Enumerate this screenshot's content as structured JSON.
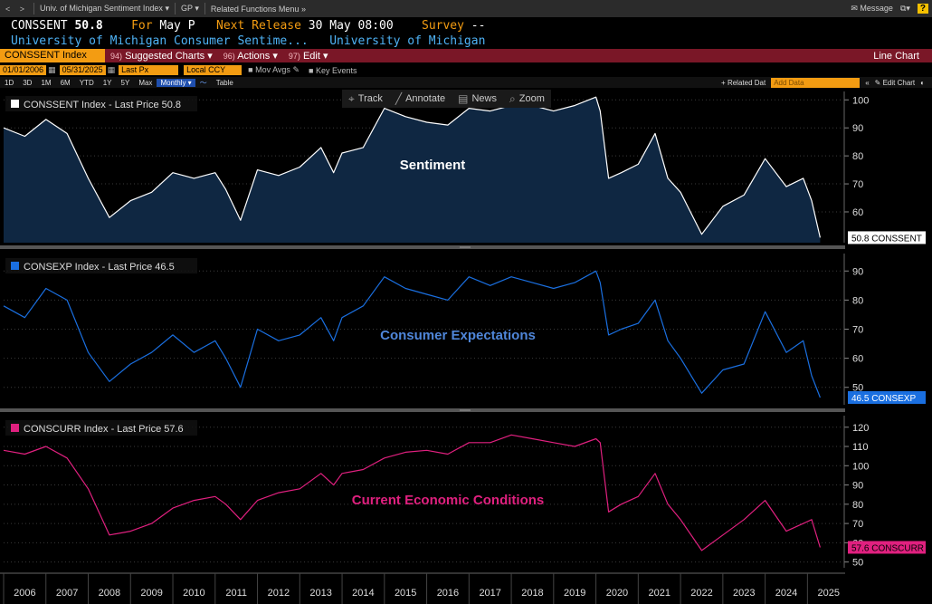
{
  "menu": {
    "nav_icons": "< >",
    "dropdown1": "Univ. of Michigan Sentiment Index",
    "dropdown2": "GP",
    "dropdown3": "Related Functions Menu",
    "message": "Message",
    "help": "?"
  },
  "header": {
    "ticker": "CONSSENT",
    "price": "50.8",
    "for_label": "For",
    "for_value": "May P",
    "next_label": "Next Release",
    "next_value": "30 May 08:00",
    "survey_label": "Survey",
    "survey_value": "--",
    "description": "University of Michigan Consumer Sentime...",
    "source": "University of Michigan"
  },
  "function_bar": {
    "security": "CONSSENT Index",
    "suggested_num": "94)",
    "suggested": "Suggested Charts",
    "actions_num": "96)",
    "actions": "Actions",
    "edit_num": "97)",
    "edit": "Edit",
    "chart_type": "Line Chart"
  },
  "date_bar": {
    "start": "01/01/2006",
    "end": "05/31/2025",
    "field": "Last Px",
    "currency": "Local CCY",
    "mov_avgs": "Mov Avgs",
    "key_events": "Key Events"
  },
  "period_bar": {
    "periods": [
      "1D",
      "3D",
      "1M",
      "6M",
      "YTD",
      "1Y",
      "5Y",
      "Max"
    ],
    "frequency": "Monthly",
    "table": "Table",
    "related": "+ Related Dat",
    "add_data": "Add Data",
    "edit_chart": "Edit Chart"
  },
  "toolbar": {
    "track": "Track",
    "annotate": "Annotate",
    "news": "News",
    "zoom": "Zoom"
  },
  "colors": {
    "sentiment": "#ffffff",
    "expectations": "#1a6fe0",
    "current": "#e0207f",
    "area_fill": "#0f2742",
    "annot_sentiment": "#ffffff",
    "annot_expectations": "#4f86d9",
    "annot_current": "#e0207f"
  },
  "chart_data": [
    {
      "type": "area",
      "legend": "CONSSENT Index - Last Price 50.8",
      "annotation": "Sentiment",
      "last_label": "50.8 CONSSENT",
      "ylim": [
        49,
        103
      ],
      "yticks": [
        60,
        70,
        80,
        90,
        100
      ],
      "series": [
        {
          "name": "CONSSENT Index",
          "x": [
            2006.0,
            2006.5,
            2007.0,
            2007.5,
            2008.0,
            2008.5,
            2009.0,
            2009.5,
            2010.0,
            2010.5,
            2011.0,
            2011.25,
            2011.6,
            2012.0,
            2012.5,
            2013.0,
            2013.5,
            2013.8,
            2014.0,
            2014.5,
            2015.0,
            2015.5,
            2016.0,
            2016.5,
            2017.0,
            2017.5,
            2018.0,
            2018.5,
            2019.0,
            2019.5,
            2020.0,
            2020.1,
            2020.3,
            2020.6,
            2021.0,
            2021.4,
            2021.7,
            2022.0,
            2022.5,
            2023.0,
            2023.5,
            2024.0,
            2024.5,
            2024.9,
            2025.1,
            2025.3
          ],
          "values": [
            90,
            87,
            93,
            88,
            72,
            58,
            64,
            67,
            74,
            72,
            74,
            68,
            57,
            75,
            73,
            76,
            83,
            74,
            81,
            83,
            97,
            94,
            92,
            91,
            97,
            96,
            98,
            98,
            96,
            98,
            101,
            96,
            72,
            74,
            77,
            88,
            72,
            67,
            52,
            62,
            66,
            79,
            69,
            72,
            64,
            50.8
          ]
        }
      ]
    },
    {
      "type": "line",
      "legend": "CONSEXP Index - Last Price 46.5",
      "annotation": "Consumer Expectations",
      "last_label": "46.5 CONSEXP",
      "ylim": [
        44,
        96
      ],
      "yticks": [
        50,
        60,
        70,
        80,
        90
      ],
      "series": [
        {
          "name": "CONSEXP Index",
          "x": [
            2006.0,
            2006.5,
            2007.0,
            2007.5,
            2008.0,
            2008.5,
            2009.0,
            2009.5,
            2010.0,
            2010.5,
            2011.0,
            2011.25,
            2011.6,
            2012.0,
            2012.5,
            2013.0,
            2013.5,
            2013.8,
            2014.0,
            2014.5,
            2015.0,
            2015.5,
            2016.0,
            2016.5,
            2017.0,
            2017.5,
            2018.0,
            2018.5,
            2019.0,
            2019.5,
            2020.0,
            2020.1,
            2020.3,
            2020.6,
            2021.0,
            2021.4,
            2021.7,
            2022.0,
            2022.5,
            2023.0,
            2023.5,
            2024.0,
            2024.5,
            2024.9,
            2025.1,
            2025.3
          ],
          "values": [
            78,
            74,
            84,
            80,
            62,
            52,
            58,
            62,
            68,
            62,
            66,
            60,
            50,
            70,
            66,
            68,
            74,
            66,
            74,
            78,
            88,
            84,
            82,
            80,
            88,
            85,
            88,
            86,
            84,
            86,
            90,
            86,
            68,
            70,
            72,
            80,
            66,
            60,
            48,
            56,
            58,
            76,
            62,
            66,
            54,
            46.5
          ]
        }
      ]
    },
    {
      "type": "line",
      "legend": "CONSCURR Index - Last Price 57.6",
      "annotation": "Current Economic Conditions",
      "last_label": "57.6 CONSCURR",
      "ylim": [
        47,
        126
      ],
      "yticks": [
        50,
        60,
        70,
        80,
        90,
        100,
        110,
        120
      ],
      "series": [
        {
          "name": "CONSCURR Index",
          "x": [
            2006.0,
            2006.5,
            2007.0,
            2007.5,
            2008.0,
            2008.5,
            2009.0,
            2009.5,
            2010.0,
            2010.5,
            2011.0,
            2011.25,
            2011.6,
            2012.0,
            2012.5,
            2013.0,
            2013.5,
            2013.8,
            2014.0,
            2014.5,
            2015.0,
            2015.5,
            2016.0,
            2016.5,
            2017.0,
            2017.5,
            2018.0,
            2018.5,
            2019.0,
            2019.5,
            2020.0,
            2020.1,
            2020.3,
            2020.6,
            2021.0,
            2021.4,
            2021.7,
            2022.0,
            2022.5,
            2023.0,
            2023.5,
            2024.0,
            2024.5,
            2024.9,
            2025.1,
            2025.3
          ],
          "values": [
            108,
            106,
            110,
            104,
            88,
            64,
            66,
            70,
            78,
            82,
            84,
            80,
            72,
            82,
            86,
            88,
            96,
            90,
            96,
            98,
            104,
            107,
            108,
            106,
            112,
            112,
            116,
            114,
            112,
            110,
            114,
            112,
            76,
            80,
            84,
            96,
            80,
            72,
            56,
            64,
            72,
            82,
            66,
            70,
            72,
            57.6
          ]
        }
      ]
    }
  ],
  "x_axis": {
    "years": [
      "2006",
      "2007",
      "2008",
      "2009",
      "2010",
      "2011",
      "2012",
      "2013",
      "2014",
      "2015",
      "2016",
      "2017",
      "2018",
      "2019",
      "2020",
      "2021",
      "2022",
      "2023",
      "2024",
      "2025"
    ]
  }
}
